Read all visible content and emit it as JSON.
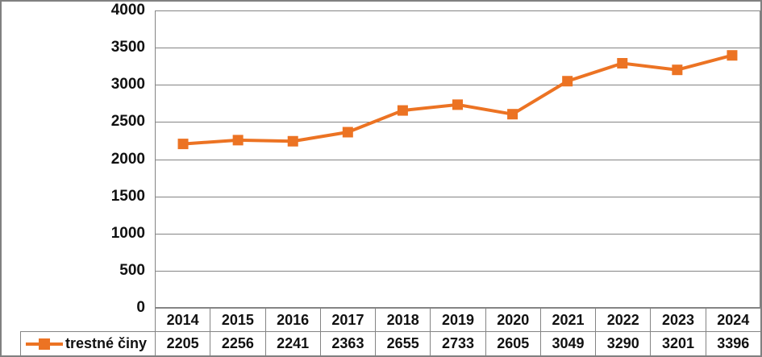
{
  "chart_data": {
    "type": "line",
    "title": "",
    "categories": [
      "2014",
      "2015",
      "2016",
      "2017",
      "2018",
      "2019",
      "2020",
      "2021",
      "2022",
      "2023",
      "2024"
    ],
    "series": [
      {
        "name": "trestné činy",
        "values": [
          2205,
          2256,
          2241,
          2363,
          2655,
          2733,
          2605,
          3049,
          3290,
          3201,
          3396
        ]
      }
    ],
    "xlabel": "",
    "ylabel": "",
    "ylim": [
      0,
      4000
    ],
    "yticks": [
      0,
      500,
      1000,
      1500,
      2000,
      2500,
      3000,
      3500,
      4000
    ],
    "grid": "horizontal",
    "marker": "square",
    "legend_position": "bottom-left",
    "data_table_shown": true
  },
  "colors": {
    "series": "#EC7323",
    "gridline": "#848484",
    "table_border": "#848484",
    "frame_border": "#808080",
    "text": "#111111",
    "background": "#FFFFFF"
  }
}
